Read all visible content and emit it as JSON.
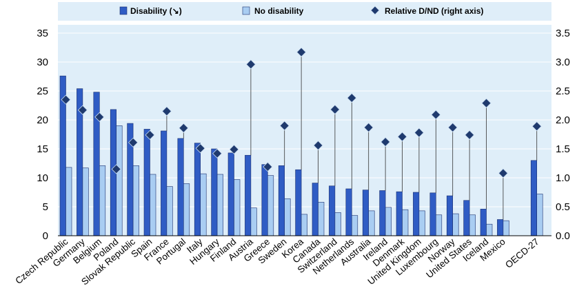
{
  "chart_data": {
    "type": "bar",
    "legend": {
      "position": "top",
      "items": [
        {
          "label": "Disability (↘)",
          "color": "#2f5cc4",
          "marker": "bar"
        },
        {
          "label": "No disability",
          "color": "#a9cdf2",
          "marker": "bar"
        },
        {
          "label": "Relative D/ND (right axis)",
          "color": "#1f3a6e",
          "marker": "diamond"
        }
      ]
    },
    "categories": [
      "Czech Republic",
      "Germany",
      "Belgium",
      "Poland",
      "Slovak Republic",
      "Spain",
      "France",
      "Portugal",
      "Italy",
      "Hungary",
      "Finland",
      "Austria",
      "Greece",
      "Sweden",
      "Korea",
      "Canada",
      "Switzerland",
      "Netherlands",
      "Australia",
      "Ireland",
      "Denmark",
      "United Kingdom",
      "Luxembourg",
      "Norway",
      "United States",
      "Iceland",
      "Mexico",
      "",
      "OECD-27"
    ],
    "series": [
      {
        "name": "Disability (↘)",
        "axis": "left",
        "values": [
          27.6,
          25.4,
          24.8,
          21.8,
          19.4,
          18.4,
          18.1,
          16.8,
          16.0,
          15.0,
          14.3,
          13.9,
          12.3,
          12.1,
          11.4,
          9.1,
          8.6,
          8.1,
          7.9,
          7.8,
          7.6,
          7.5,
          7.4,
          6.9,
          6.1,
          4.6,
          2.8,
          null,
          13.0
        ]
      },
      {
        "name": "No disability",
        "axis": "left",
        "values": [
          11.8,
          11.7,
          12.1,
          19.0,
          12.1,
          10.6,
          8.5,
          9.0,
          10.7,
          10.6,
          9.7,
          4.8,
          10.4,
          6.4,
          3.7,
          5.8,
          4.0,
          3.5,
          4.3,
          4.9,
          4.5,
          4.3,
          3.6,
          3.8,
          3.6,
          2.0,
          2.6,
          null,
          7.2
        ]
      },
      {
        "name": "Relative D/ND (right axis)",
        "axis": "right",
        "type": "scatter",
        "values": [
          2.35,
          2.17,
          2.05,
          1.15,
          1.61,
          1.74,
          2.15,
          1.86,
          1.51,
          1.42,
          1.49,
          2.96,
          1.19,
          1.9,
          3.17,
          1.56,
          2.18,
          2.38,
          1.87,
          1.62,
          1.71,
          1.78,
          2.09,
          1.87,
          1.74,
          2.29,
          1.08,
          null,
          1.89
        ]
      }
    ],
    "y_left": {
      "min": 0,
      "max": 35,
      "ticks": [
        "0",
        "5",
        "10",
        "15",
        "20",
        "25",
        "30",
        "35"
      ]
    },
    "y_right": {
      "min": 0,
      "max": 3.5,
      "ticks": [
        "0.0",
        "0.5",
        "1.0",
        "1.5",
        "2.0",
        "2.5",
        "3.0",
        "3.5"
      ]
    },
    "grid": true,
    "colors": {
      "plot_bg": "#dfeef9",
      "grid": "#ffffff",
      "disability": "#2f5cc4",
      "no_disability": "#a9cdf2",
      "marker": "#1f3a6e",
      "stem": "#333333",
      "bar_edge": "#1a2f6e"
    }
  }
}
